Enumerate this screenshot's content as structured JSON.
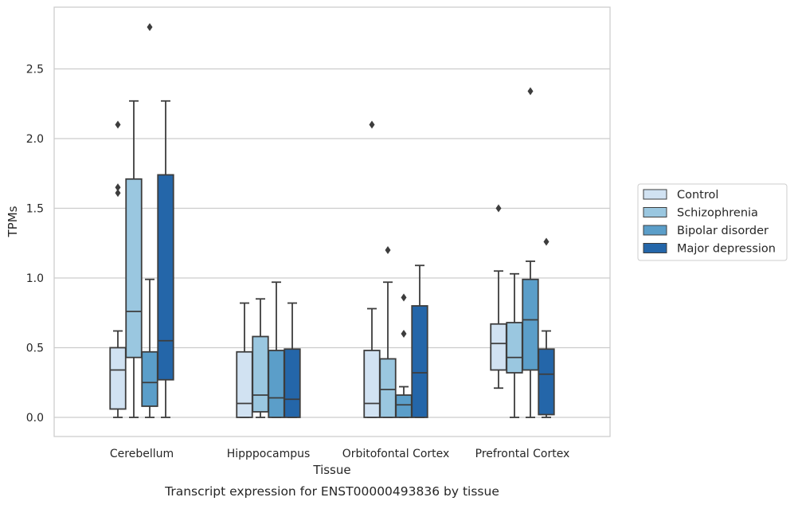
{
  "chart_data": {
    "type": "box",
    "title": "",
    "xlabel": "Tissue",
    "ylabel": "TPMs",
    "caption": "Transcript expression for ENST00000493836 by tissue",
    "ylim": [
      -0.14,
      2.95
    ],
    "yticks": [
      0.0,
      0.5,
      1.0,
      1.5,
      2.0,
      2.5
    ],
    "ytick_labels": [
      "0.0",
      "0.5",
      "1.0",
      "1.5",
      "2.0",
      "2.5"
    ],
    "grid": "horizontal",
    "legend_position": "right",
    "categories": [
      "Cerebellum",
      "Hipppocampus",
      "Orbitofontal Cortex",
      "Prefrontal Cortex"
    ],
    "series": [
      {
        "name": "Control",
        "color": "#d1e2f2",
        "boxes": [
          {
            "whislo": 0.0,
            "q1": 0.06,
            "med": 0.34,
            "q3": 0.5,
            "whishi": 0.62,
            "fliers": [
              1.61,
              1.65,
              2.1
            ]
          },
          {
            "whislo": 0.0,
            "q1": 0.0,
            "med": 0.1,
            "q3": 0.47,
            "whishi": 0.82,
            "fliers": []
          },
          {
            "whislo": 0.0,
            "q1": 0.0,
            "med": 0.1,
            "q3": 0.48,
            "whishi": 0.78,
            "fliers": [
              2.1
            ]
          },
          {
            "whislo": 0.21,
            "q1": 0.34,
            "med": 0.53,
            "q3": 0.67,
            "whishi": 1.05,
            "fliers": [
              1.5
            ]
          }
        ]
      },
      {
        "name": "Schizophrenia",
        "color": "#9ac7e0",
        "boxes": [
          {
            "whislo": 0.0,
            "q1": 0.43,
            "med": 0.76,
            "q3": 1.71,
            "whishi": 2.27,
            "fliers": []
          },
          {
            "whislo": 0.0,
            "q1": 0.04,
            "med": 0.16,
            "q3": 0.58,
            "whishi": 0.85,
            "fliers": []
          },
          {
            "whislo": 0.0,
            "q1": 0.0,
            "med": 0.2,
            "q3": 0.42,
            "whishi": 0.97,
            "fliers": [
              1.2
            ]
          },
          {
            "whislo": 0.0,
            "q1": 0.32,
            "med": 0.43,
            "q3": 0.68,
            "whishi": 1.03,
            "fliers": []
          }
        ]
      },
      {
        "name": "Bipolar disorder",
        "color": "#5b9ec9",
        "boxes": [
          {
            "whislo": 0.0,
            "q1": 0.08,
            "med": 0.25,
            "q3": 0.47,
            "whishi": 0.99,
            "fliers": [
              2.8
            ]
          },
          {
            "whislo": 0.0,
            "q1": 0.0,
            "med": 0.14,
            "q3": 0.48,
            "whishi": 0.97,
            "fliers": []
          },
          {
            "whislo": 0.0,
            "q1": 0.0,
            "med": 0.09,
            "q3": 0.16,
            "whishi": 0.22,
            "fliers": [
              0.6,
              0.86
            ]
          },
          {
            "whislo": 0.0,
            "q1": 0.34,
            "med": 0.7,
            "q3": 0.99,
            "whishi": 1.12,
            "fliers": [
              2.34
            ]
          }
        ]
      },
      {
        "name": "Major depression",
        "color": "#2466a9",
        "boxes": [
          {
            "whislo": 0.0,
            "q1": 0.27,
            "med": 0.55,
            "q3": 1.74,
            "whishi": 2.27,
            "fliers": []
          },
          {
            "whislo": 0.0,
            "q1": 0.0,
            "med": 0.13,
            "q3": 0.49,
            "whishi": 0.82,
            "fliers": []
          },
          {
            "whislo": 0.0,
            "q1": 0.0,
            "med": 0.32,
            "q3": 0.8,
            "whishi": 1.09,
            "fliers": []
          },
          {
            "whislo": 0.0,
            "q1": 0.02,
            "med": 0.31,
            "q3": 0.49,
            "whishi": 0.62,
            "fliers": [
              1.26
            ]
          }
        ]
      }
    ]
  }
}
